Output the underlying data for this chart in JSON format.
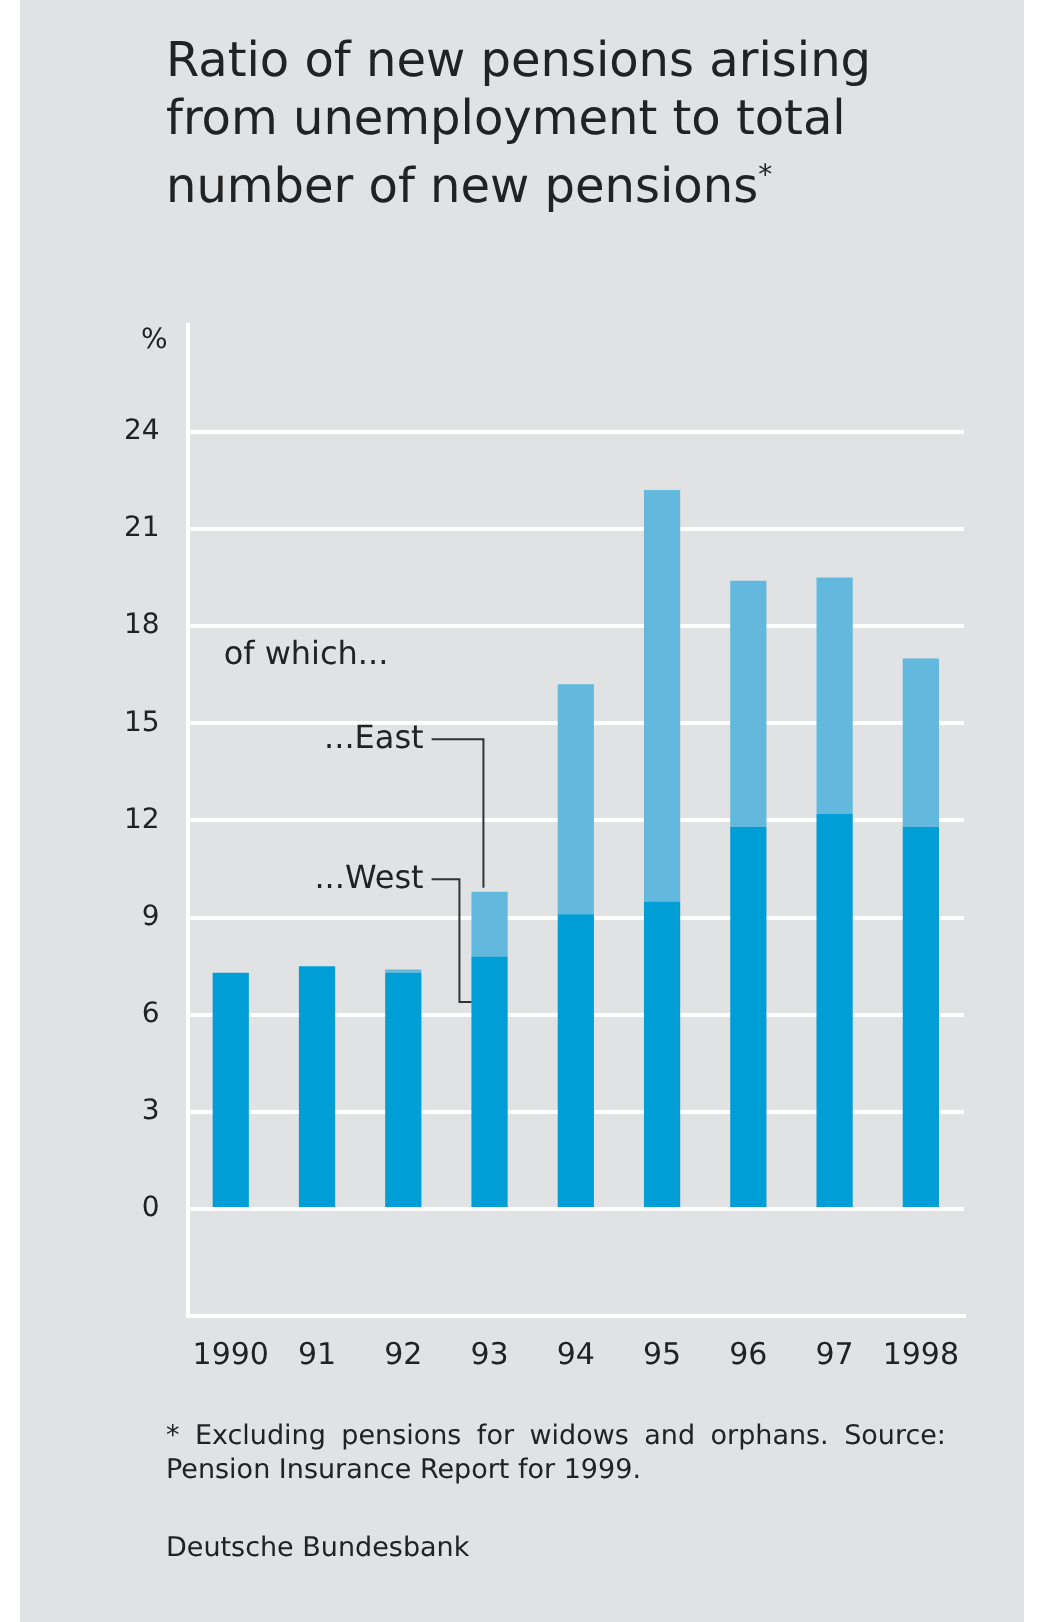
{
  "chart_data": {
    "type": "bar",
    "title": "Ratio of new pensions arising from unemployment to total number of new pensions$^{*}$",
    "ylabel": "%",
    "legend_title": "of which...",
    "categories": [
      "1990",
      "91",
      "92",
      "93",
      "94",
      "95",
      "96",
      "97",
      "1998"
    ],
    "series": [
      {
        "name": "...West",
        "color": "#009ed6",
        "values": [
          7.3,
          7.5,
          7.3,
          7.8,
          9.1,
          9.5,
          11.8,
          12.2,
          11.8
        ]
      },
      {
        "name": "...East",
        "color": "#62b8dd",
        "values": [
          0,
          0,
          0.1,
          2.0,
          7.1,
          12.7,
          7.6,
          7.3,
          5.2
        ]
      }
    ],
    "stacked": true,
    "ylim": [
      -3.3,
      27.3
    ],
    "yticks": [
      0,
      3,
      6,
      9,
      12,
      15,
      18,
      21,
      24
    ],
    "grid": "y",
    "legend": "top left",
    "annotations": [
      "* Excluding pensions for widows and orphans. Source: Pension Insurance Report for 1999.",
      "Deutsche Bundesbank"
    ]
  }
}
